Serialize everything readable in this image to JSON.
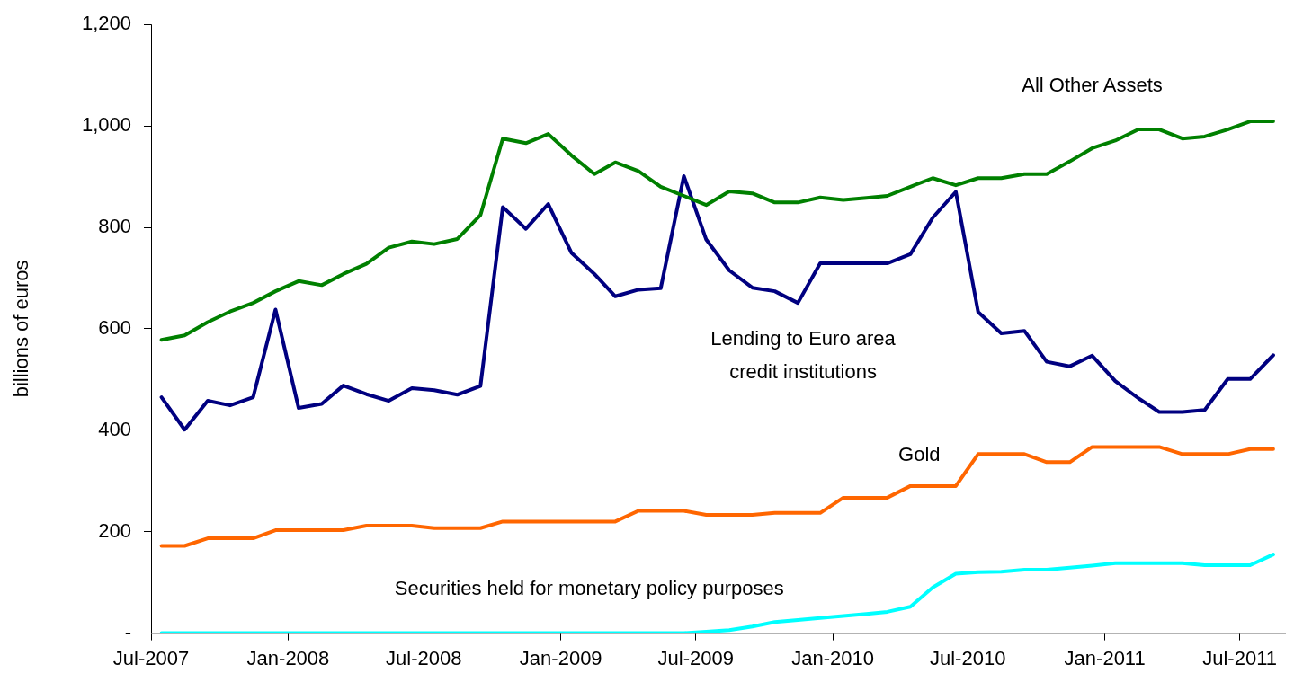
{
  "chart_data": {
    "type": "line",
    "ylabel": "billions of euros",
    "x": [
      "2007-07-15",
      "2007-08-15",
      "2007-09-15",
      "2007-10-15",
      "2007-11-15",
      "2007-12-15",
      "2008-01-15",
      "2008-02-15",
      "2008-03-15",
      "2008-04-15",
      "2008-05-15",
      "2008-06-15",
      "2008-07-15",
      "2008-08-15",
      "2008-09-15",
      "2008-10-15",
      "2008-11-15",
      "2008-12-15",
      "2009-01-15",
      "2009-02-15",
      "2009-03-15",
      "2009-04-15",
      "2009-05-15",
      "2009-06-15",
      "2009-07-15",
      "2009-08-15",
      "2009-09-15",
      "2009-10-15",
      "2009-11-15",
      "2009-12-15",
      "2010-01-15",
      "2010-02-15",
      "2010-03-15",
      "2010-04-15",
      "2010-05-15",
      "2010-06-15",
      "2010-07-15",
      "2010-08-15",
      "2010-09-15",
      "2010-10-15",
      "2010-11-15",
      "2010-12-15",
      "2011-01-15",
      "2011-02-15",
      "2011-03-15",
      "2011-04-15",
      "2011-05-15",
      "2011-06-15",
      "2011-07-15",
      "2011-08-15"
    ],
    "series": [
      {
        "name": "All Other Assets",
        "color": "#008000",
        "values": [
          578,
          587,
          613,
          634,
          651,
          674,
          694,
          686,
          708,
          728,
          760,
          772,
          767,
          777,
          824,
          975,
          966,
          984,
          942,
          905,
          928,
          911,
          880,
          862,
          844,
          871,
          867,
          849,
          849,
          859,
          854,
          858,
          862,
          880,
          897,
          883,
          897,
          897,
          905,
          905,
          930,
          956,
          971,
          993,
          993,
          975,
          979,
          993,
          1009,
          1009
        ]
      },
      {
        "name": "Lending to Euro area credit institutions",
        "color": "#000080",
        "values": [
          465,
          401,
          458,
          449,
          465,
          638,
          444,
          452,
          488,
          471,
          458,
          483,
          479,
          470,
          487,
          840,
          797,
          846,
          750,
          708,
          664,
          677,
          680,
          901,
          776,
          715,
          681,
          674,
          651,
          729,
          729,
          729,
          729,
          747,
          819,
          870,
          633,
          591,
          596,
          535,
          526,
          547,
          497,
          463,
          436,
          436,
          440,
          501,
          501,
          548
        ]
      },
      {
        "name": "Gold",
        "color": "#ff6600",
        "values": [
          172,
          172,
          187,
          187,
          187,
          203,
          203,
          203,
          203,
          212,
          212,
          212,
          207,
          207,
          207,
          220,
          220,
          220,
          220,
          220,
          220,
          241,
          241,
          241,
          233,
          233,
          233,
          237,
          237,
          237,
          267,
          267,
          267,
          290,
          290,
          290,
          353,
          353,
          353,
          337,
          337,
          367,
          367,
          367,
          367,
          353,
          353,
          353,
          363,
          363
        ]
      },
      {
        "name": "Securities held for monetary policy purposes",
        "color": "#00ffff",
        "values": [
          0,
          0,
          0,
          0,
          0,
          0,
          0,
          0,
          0,
          0,
          0,
          0,
          0,
          0,
          0,
          0,
          0,
          0,
          0,
          0,
          0,
          0,
          0,
          0,
          3,
          6,
          13,
          22,
          26,
          30,
          34,
          38,
          42,
          52,
          90,
          117,
          120,
          121,
          125,
          125,
          129,
          133,
          138,
          138,
          138,
          138,
          134,
          134,
          134,
          155
        ]
      }
    ],
    "xlim": [
      "2007-07",
      "2011-09"
    ],
    "xticks": [
      {
        "value": "2007-07",
        "label": "Jul-2007"
      },
      {
        "value": "2008-01",
        "label": "Jan-2008"
      },
      {
        "value": "2008-07",
        "label": "Jul-2008"
      },
      {
        "value": "2009-01",
        "label": "Jan-2009"
      },
      {
        "value": "2009-07",
        "label": "Jul-2009"
      },
      {
        "value": "2010-01",
        "label": "Jan-2010"
      },
      {
        "value": "2010-07",
        "label": "Jul-2010"
      },
      {
        "value": "2011-01",
        "label": "Jan-2011"
      },
      {
        "value": "2011-07",
        "label": "Jul-2011"
      }
    ],
    "ylim": [
      0,
      1200
    ],
    "yticks": [
      {
        "value": 0,
        "label": "-"
      },
      200,
      400,
      600,
      800,
      {
        "value": 1000,
        "label": "1,000"
      },
      {
        "value": 1200,
        "label": "1,200"
      }
    ],
    "grid": false,
    "legend": false,
    "marker": "none",
    "line_style": "solid"
  }
}
